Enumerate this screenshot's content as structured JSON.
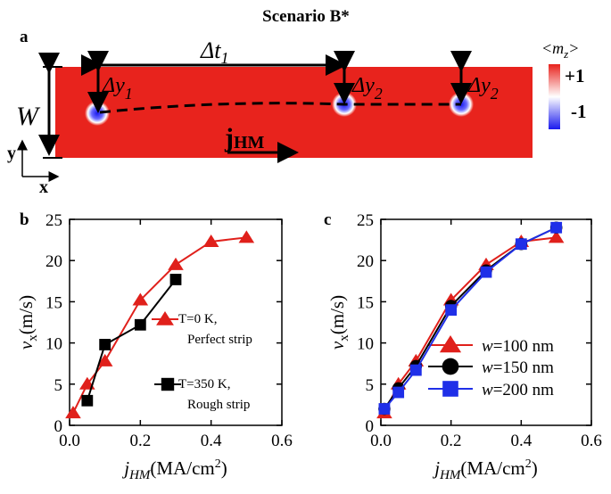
{
  "title": "Scenario B*",
  "panel_a": {
    "label": "a",
    "dt": {
      "text": "Δt",
      "sub": "1"
    },
    "dy": [
      {
        "text": "Δy",
        "sub": "1"
      },
      {
        "text": "Δy",
        "sub": "2"
      },
      {
        "text": "Δy",
        "sub": "2"
      }
    ],
    "width_label": "W",
    "axis_y": "y",
    "axis_x": "x",
    "current": {
      "text": "j",
      "sub": "HM"
    },
    "colorbar": {
      "title": "<m",
      "title_sub": "z",
      "title_end": ">",
      "top": "+1",
      "bottom": "-1"
    }
  },
  "chart_data": [
    {
      "type": "line",
      "label": "b",
      "xlabel": {
        "main": "j",
        "sub": "HM",
        "rest": "(MA/cm",
        "sup": "2",
        "end": ")"
      },
      "ylabel": {
        "main": "v",
        "sub": "x",
        "rest": "(m/s)"
      },
      "xlim": [
        0,
        0.6
      ],
      "xticks": [
        {
          "value": 0,
          "label": "0.0"
        },
        {
          "value": 0.2,
          "label": "0.2"
        },
        {
          "value": 0.4,
          "label": "0.4"
        },
        {
          "value": 0.6,
          "label": "0.6"
        }
      ],
      "ylim": [
        0,
        25
      ],
      "yticks": [
        0,
        5,
        10,
        15,
        20,
        25
      ],
      "series": [
        {
          "name": [
            "T=0 K,",
            "Perfect strip"
          ],
          "color": "#e0201b",
          "marker": "triangle",
          "x": [
            0.01,
            0.05,
            0.1,
            0.2,
            0.3,
            0.4,
            0.5
          ],
          "values": [
            1.5,
            5,
            7.8,
            15.2,
            19.5,
            22.3,
            22.8
          ]
        },
        {
          "name": [
            "T=350 K,",
            "Rough strip"
          ],
          "color": "#000000",
          "marker": "square",
          "x": [
            0.05,
            0.1,
            0.2,
            0.3
          ],
          "values": [
            3,
            9.8,
            12.2,
            17.7
          ]
        }
      ]
    },
    {
      "type": "line",
      "label": "c",
      "xlabel": {
        "main": "j",
        "sub": "HM",
        "rest": "(MA/cm",
        "sup": "2",
        "end": ")"
      },
      "ylabel": {
        "main": "v",
        "sub": "x",
        "rest": "(m/s)"
      },
      "xlim": [
        0,
        0.6
      ],
      "xticks": [
        {
          "value": 0,
          "label": "0.0"
        },
        {
          "value": 0.2,
          "label": "0.2"
        },
        {
          "value": 0.4,
          "label": "0.4"
        },
        {
          "value": 0.6,
          "label": "0.6"
        }
      ],
      "ylim": [
        0,
        25
      ],
      "yticks": [
        0,
        5,
        10,
        15,
        20,
        25
      ],
      "series": [
        {
          "name": [
            "w",
            "=100 nm"
          ],
          "color": "#e0201b",
          "marker": "triangle",
          "x": [
            0.01,
            0.05,
            0.1,
            0.2,
            0.3,
            0.4,
            0.5
          ],
          "values": [
            1.5,
            5,
            7.8,
            15.2,
            19.5,
            22.3,
            22.8
          ]
        },
        {
          "name": [
            "w",
            "=150 nm"
          ],
          "color": "#000000",
          "marker": "circle",
          "x": [
            0.01,
            0.05,
            0.1,
            0.2,
            0.3,
            0.4,
            0.5
          ],
          "values": [
            2,
            4.5,
            7.2,
            14.5,
            18.8,
            22,
            24
          ]
        },
        {
          "name": [
            "w",
            "=200 nm"
          ],
          "color": "#1f2fe8",
          "marker": "square",
          "x": [
            0.01,
            0.05,
            0.1,
            0.2,
            0.3,
            0.4,
            0.5
          ],
          "values": [
            2,
            4,
            6.7,
            14,
            18.6,
            22,
            24
          ]
        }
      ]
    }
  ]
}
